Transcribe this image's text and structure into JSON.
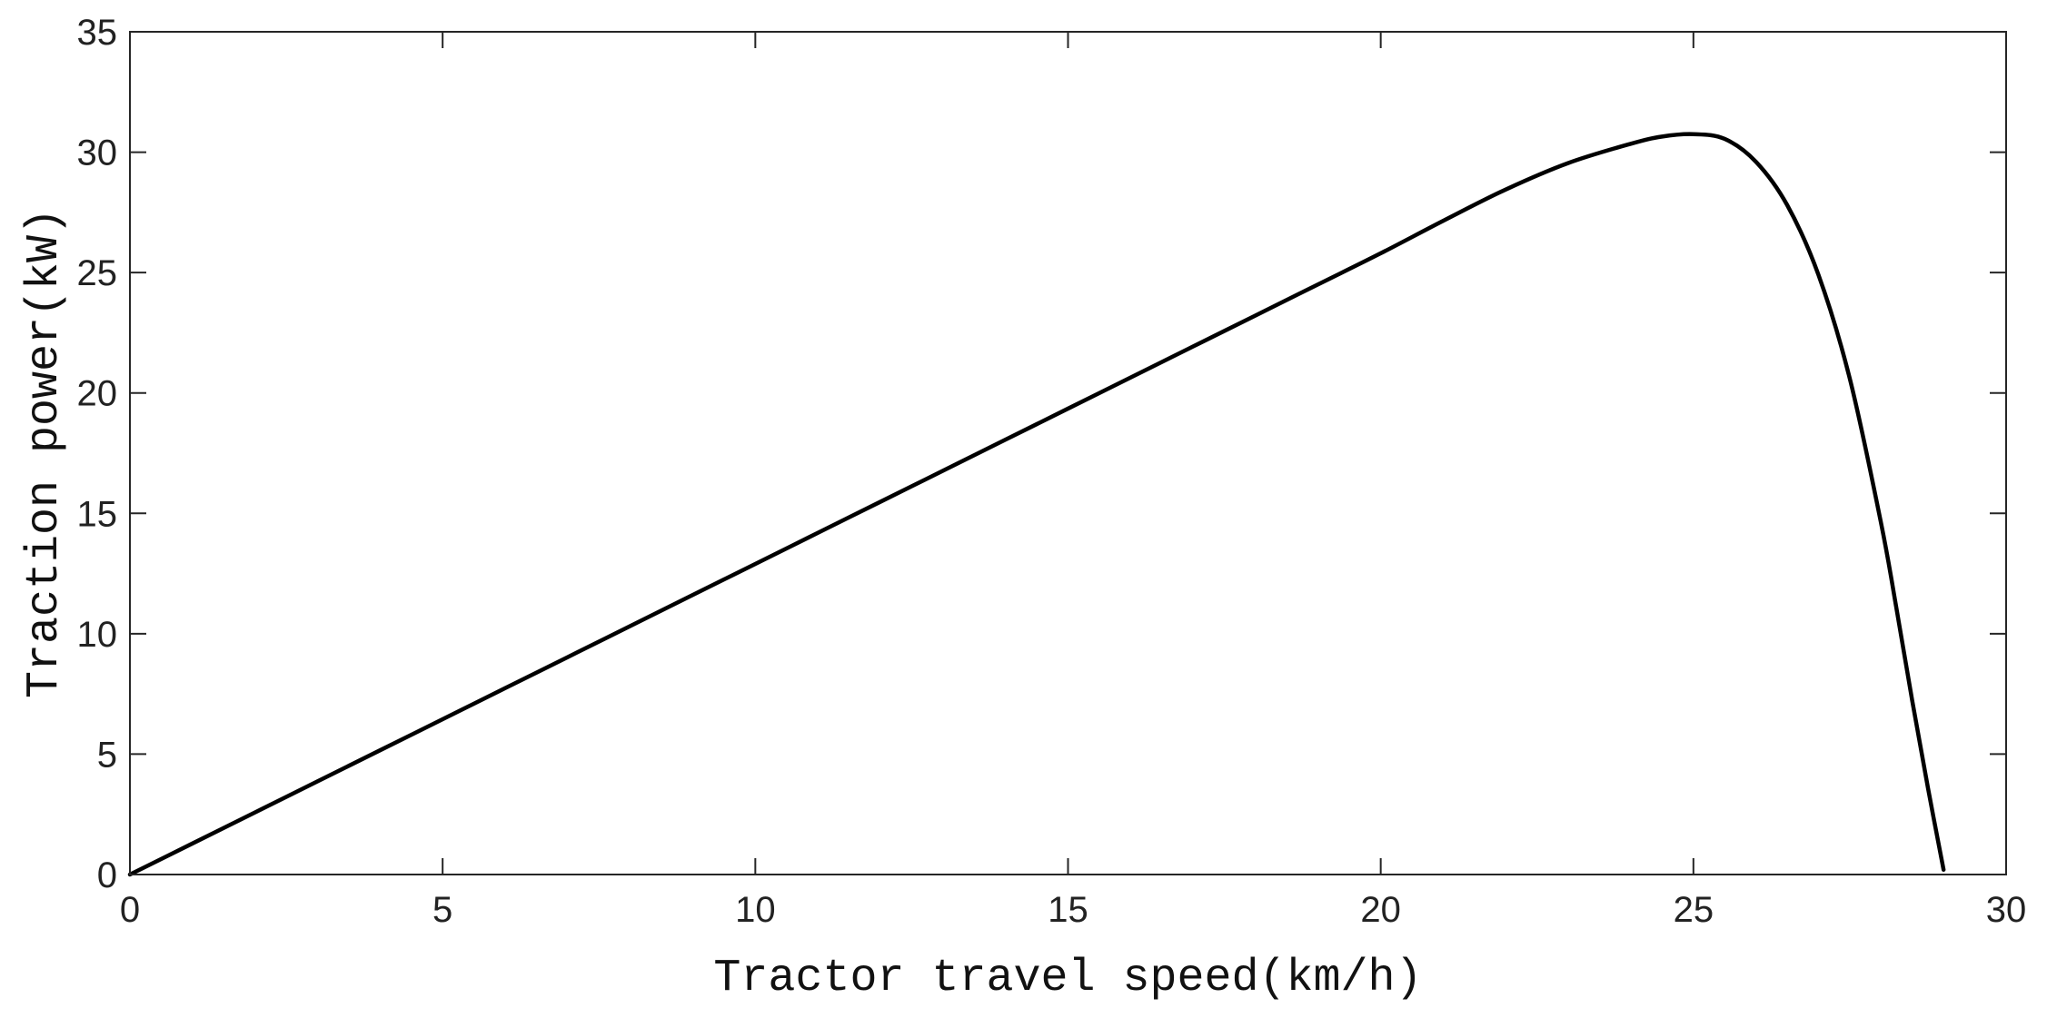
{
  "chart_data": {
    "type": "line",
    "title": "",
    "xlabel": "Tractor travel speed(km/h)",
    "ylabel": "Traction power(kW)",
    "xlim": [
      0,
      30
    ],
    "ylim": [
      0,
      35
    ],
    "xticks": [
      0,
      5,
      10,
      15,
      20,
      25,
      30
    ],
    "yticks": [
      0,
      5,
      10,
      15,
      20,
      25,
      30,
      35
    ],
    "grid": false,
    "box": true,
    "line_color": "#000000",
    "series": [
      {
        "x": [
          0,
          1,
          2,
          3,
          4,
          5,
          6,
          7,
          8,
          9,
          10,
          11,
          12,
          13,
          14,
          15,
          16,
          17,
          18,
          19,
          20,
          21,
          22,
          23,
          24,
          24.5,
          25,
          25.5,
          26,
          26.5,
          27,
          27.5,
          28,
          28.25,
          28.5,
          28.75,
          29
        ],
        "y": [
          0,
          1.29,
          2.58,
          3.87,
          5.16,
          6.45,
          7.74,
          9.03,
          10.32,
          11.61,
          12.9,
          14.19,
          15.48,
          16.77,
          18.06,
          19.35,
          20.64,
          21.93,
          23.22,
          24.51,
          25.8,
          27.15,
          28.45,
          29.55,
          30.35,
          30.65,
          30.75,
          30.55,
          29.6,
          27.8,
          24.9,
          20.6,
          14.6,
          11.0,
          7.2,
          3.6,
          0.2
        ]
      }
    ]
  }
}
